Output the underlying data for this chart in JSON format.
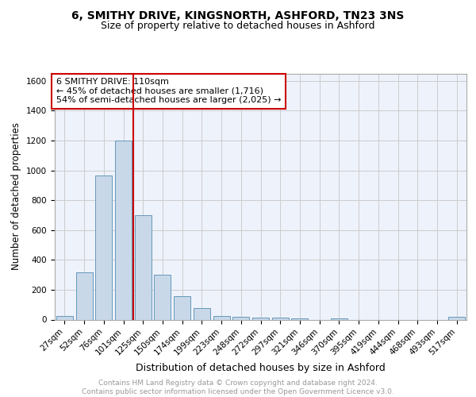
{
  "title": "6, SMITHY DRIVE, KINGSNORTH, ASHFORD, TN23 3NS",
  "subtitle": "Size of property relative to detached houses in Ashford",
  "xlabel": "Distribution of detached houses by size in Ashford",
  "ylabel": "Number of detached properties",
  "categories": [
    "27sqm",
    "52sqm",
    "76sqm",
    "101sqm",
    "125sqm",
    "150sqm",
    "174sqm",
    "199sqm",
    "223sqm",
    "248sqm",
    "272sqm",
    "297sqm",
    "321sqm",
    "346sqm",
    "370sqm",
    "395sqm",
    "419sqm",
    "444sqm",
    "468sqm",
    "493sqm",
    "517sqm"
  ],
  "values": [
    25,
    315,
    965,
    1200,
    700,
    300,
    155,
    75,
    25,
    18,
    15,
    12,
    8,
    0,
    10,
    0,
    0,
    0,
    0,
    0,
    18
  ],
  "bar_color": "#c8d8e8",
  "bar_edge_color": "#6699bb",
  "vline_x": 3.5,
  "vline_color": "#cc0000",
  "annotation_text": "6 SMITHY DRIVE: 110sqm\n← 45% of detached houses are smaller (1,716)\n54% of semi-detached houses are larger (2,025) →",
  "annotation_box_color": "#ffffff",
  "annotation_box_edge_color": "#cc0000",
  "ylim": [
    0,
    1650
  ],
  "yticks": [
    0,
    200,
    400,
    600,
    800,
    1000,
    1200,
    1400,
    1600
  ],
  "grid_color": "#cccccc",
  "background_color": "#eef2fb",
  "footer_text": "Contains HM Land Registry data © Crown copyright and database right 2024.\nContains public sector information licensed under the Open Government Licence v3.0.",
  "title_fontsize": 10,
  "subtitle_fontsize": 9,
  "xlabel_fontsize": 9,
  "ylabel_fontsize": 8.5,
  "tick_fontsize": 7.5,
  "annotation_fontsize": 8,
  "footer_fontsize": 6.5
}
